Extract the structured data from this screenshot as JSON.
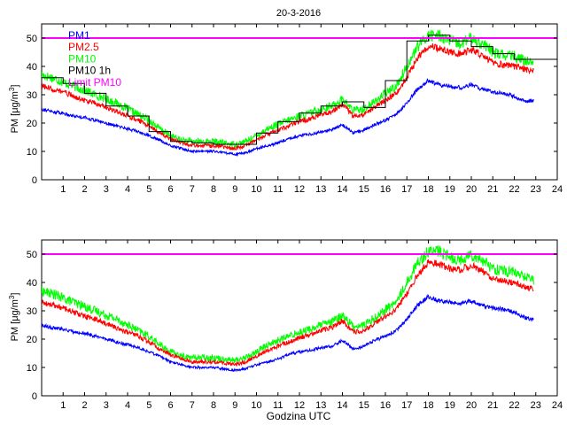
{
  "title": "20-3-2016",
  "xlabel": "Godzina UTC",
  "ylabel_main": "PM [μg/m",
  "ylabel_sup": "3",
  "ylabel_close": "]",
  "legend": [
    {
      "label": "PM1",
      "color": "#0000ff"
    },
    {
      "label": "PM2.5",
      "color": "#ff0000"
    },
    {
      "label": "PM10",
      "color": "#00ff00"
    },
    {
      "label": "PM10 1h",
      "color": "#000000"
    },
    {
      "label": "Limit PM10",
      "color": "#ff00ff"
    }
  ],
  "chart_data": [
    {
      "type": "line",
      "title": "20-3-2016",
      "ylim": [
        0,
        55
      ],
      "xlim": [
        0,
        24
      ],
      "xticks": [
        1,
        2,
        3,
        4,
        5,
        6,
        7,
        8,
        9,
        10,
        11,
        12,
        13,
        14,
        15,
        16,
        17,
        18,
        19,
        20,
        21,
        22,
        23,
        24
      ],
      "yticks": [
        0,
        10,
        20,
        30,
        40,
        50
      ],
      "grid": false,
      "legend_position": "top-left",
      "limit_line": {
        "name": "Limit PM10",
        "value": 50,
        "color": "#ff00ff"
      },
      "series": [
        {
          "name": "PM1",
          "color": "#0000ff",
          "x": [
            0,
            0.5,
            1,
            1.5,
            2,
            2.5,
            3,
            3.5,
            4,
            4.5,
            5,
            5.5,
            6,
            6.5,
            7,
            7.5,
            8,
            8.5,
            9,
            9.5,
            10,
            10.5,
            11,
            11.5,
            12,
            12.5,
            13,
            13.5,
            14,
            14.5,
            15,
            15.5,
            16,
            16.5,
            17,
            17.5,
            18,
            18.5,
            19,
            19.5,
            20,
            20.5,
            21,
            21.5,
            22,
            22.5,
            22.9
          ],
          "y": [
            25,
            24,
            23.5,
            22.5,
            22,
            21,
            20,
            19,
            18,
            17,
            15.5,
            14,
            12,
            11,
            10,
            10,
            10,
            9.5,
            9,
            9.5,
            11,
            12,
            13,
            14.5,
            15.5,
            16,
            17,
            17.5,
            19.5,
            16.5,
            17.5,
            19.5,
            21,
            23,
            27,
            32,
            35,
            33.5,
            33,
            32.5,
            33.5,
            32,
            31,
            30.5,
            29.5,
            27.5,
            28
          ]
        },
        {
          "name": "PM2.5",
          "color": "#ff0000",
          "x": [
            0,
            0.5,
            1,
            1.5,
            2,
            2.5,
            3,
            3.5,
            4,
            4.5,
            5,
            5.5,
            6,
            6.5,
            7,
            7.5,
            8,
            8.5,
            9,
            9.5,
            10,
            10.5,
            11,
            11.5,
            12,
            12.5,
            13,
            13.5,
            14,
            14.5,
            15,
            15.5,
            16,
            16.5,
            17,
            17.5,
            18,
            18.5,
            19,
            19.5,
            20,
            20.5,
            21,
            21.5,
            22,
            22.5,
            22.9
          ],
          "y": [
            33,
            32,
            31,
            29.5,
            28,
            27,
            25.5,
            24,
            22.5,
            21,
            19,
            16.5,
            14.5,
            13,
            12,
            12,
            12,
            11.5,
            11,
            12,
            14,
            16,
            17.5,
            19,
            20.5,
            21.5,
            23,
            24,
            26.5,
            22.5,
            23,
            25.5,
            28,
            30.5,
            36,
            43,
            47,
            46.5,
            45,
            44.5,
            46,
            44,
            41.5,
            40.5,
            40,
            39,
            38.5
          ]
        },
        {
          "name": "PM10",
          "color": "#00ff00",
          "x": [
            0,
            0.5,
            1,
            1.5,
            2,
            2.5,
            3,
            3.5,
            4,
            4.5,
            5,
            5.5,
            6,
            6.5,
            7,
            7.5,
            8,
            8.5,
            9,
            9.5,
            10,
            10.5,
            11,
            11.5,
            12,
            12.5,
            13,
            13.5,
            14,
            14.5,
            15,
            15.5,
            16,
            16.5,
            17,
            17.5,
            18,
            18.5,
            19,
            19.5,
            20,
            20.5,
            21,
            21.5,
            22,
            22.5,
            22.9
          ],
          "y": [
            37,
            36,
            34.5,
            33,
            31.5,
            30,
            28.5,
            27,
            25,
            23,
            21,
            18,
            15.5,
            14,
            13.5,
            13.5,
            13.5,
            13,
            12.5,
            13.5,
            15.5,
            18,
            19.5,
            21,
            22.5,
            23.5,
            25,
            26,
            28.5,
            24.5,
            25,
            27.5,
            30.5,
            33,
            40,
            47,
            51,
            51,
            49,
            48,
            50,
            48,
            45,
            44,
            43.5,
            42,
            42
          ]
        },
        {
          "name": "PM10 1h",
          "color": "#000000",
          "step": true,
          "x": [
            0,
            1,
            2,
            3,
            4,
            5,
            6,
            7,
            8,
            9,
            10,
            11,
            12,
            13,
            14,
            15,
            16,
            17,
            18,
            19,
            20,
            21,
            22,
            23
          ],
          "y": [
            36,
            34,
            30.5,
            26,
            22.5,
            17,
            13.5,
            13,
            12.5,
            12.5,
            16.5,
            20.5,
            23.5,
            26,
            27.5,
            25.5,
            35,
            49,
            51,
            49,
            47,
            44.5,
            42.5,
            42.5
          ]
        }
      ]
    },
    {
      "type": "line",
      "xlabel": "Godzina UTC",
      "ylim": [
        0,
        55
      ],
      "xlim": [
        0,
        24
      ],
      "xticks": [
        1,
        2,
        3,
        4,
        5,
        6,
        7,
        8,
        9,
        10,
        11,
        12,
        13,
        14,
        15,
        16,
        17,
        18,
        19,
        20,
        21,
        22,
        23,
        24
      ],
      "yticks": [
        0,
        10,
        20,
        30,
        40,
        50
      ],
      "grid": false,
      "limit_line": {
        "name": "Limit PM10",
        "value": 50,
        "color": "#ff00ff"
      },
      "series": [
        {
          "name": "PM1",
          "color": "#0000ff",
          "x": [
            0,
            0.5,
            1,
            1.5,
            2,
            2.5,
            3,
            3.5,
            4,
            4.5,
            5,
            5.5,
            6,
            6.5,
            7,
            7.5,
            8,
            8.5,
            9,
            9.5,
            10,
            10.5,
            11,
            11.5,
            12,
            12.5,
            13,
            13.5,
            14,
            14.5,
            15,
            15.5,
            16,
            16.5,
            17,
            17.5,
            18,
            18.5,
            19,
            19.5,
            20,
            20.5,
            21,
            21.5,
            22,
            22.5,
            22.9
          ],
          "y": [
            25,
            24,
            23.5,
            22.5,
            22,
            21,
            20,
            19,
            18,
            17,
            15.5,
            14,
            12,
            11,
            10,
            10,
            10,
            9.5,
            9,
            9.5,
            11,
            12,
            13,
            14.5,
            15.5,
            16,
            17,
            17.5,
            19.5,
            16.5,
            17.5,
            19.5,
            21,
            23,
            27,
            32,
            35,
            33.5,
            33,
            32.5,
            33.5,
            32,
            31,
            30.5,
            29.5,
            27.5,
            27
          ]
        },
        {
          "name": "PM2.5",
          "color": "#ff0000",
          "x": [
            0,
            0.5,
            1,
            1.5,
            2,
            2.5,
            3,
            3.5,
            4,
            4.5,
            5,
            5.5,
            6,
            6.5,
            7,
            7.5,
            8,
            8.5,
            9,
            9.5,
            10,
            10.5,
            11,
            11.5,
            12,
            12.5,
            13,
            13.5,
            14,
            14.5,
            15,
            15.5,
            16,
            16.5,
            17,
            17.5,
            18,
            18.5,
            19,
            19.5,
            20,
            20.5,
            21,
            21.5,
            22,
            22.5,
            22.9
          ],
          "y": [
            33,
            32,
            31,
            29.5,
            28,
            27,
            25.5,
            24,
            22.5,
            21,
            19,
            16.5,
            14.5,
            13,
            12,
            12,
            12,
            11.5,
            11,
            12,
            14,
            16,
            17.5,
            19,
            20.5,
            21.5,
            23,
            24,
            26.5,
            22.5,
            23,
            25.5,
            28,
            30.5,
            36,
            43,
            47,
            46.5,
            45,
            44.5,
            46,
            44,
            41.5,
            40.5,
            40,
            38.5,
            37.5
          ]
        },
        {
          "name": "PM10",
          "color": "#00ff00",
          "x": [
            0,
            0.5,
            1,
            1.5,
            2,
            2.5,
            3,
            3.5,
            4,
            4.5,
            5,
            5.5,
            6,
            6.5,
            7,
            7.5,
            8,
            8.5,
            9,
            9.5,
            10,
            10.5,
            11,
            11.5,
            12,
            12.5,
            13,
            13.5,
            14,
            14.5,
            15,
            15.5,
            16,
            16.5,
            17,
            17.5,
            18,
            18.5,
            19,
            19.5,
            20,
            20.5,
            21,
            21.5,
            22,
            22.5,
            22.9
          ],
          "y": [
            37,
            36,
            34.5,
            33,
            31.5,
            30,
            28.5,
            27,
            25,
            23,
            21,
            18,
            15.5,
            14,
            13.5,
            13.5,
            13.5,
            13,
            12.5,
            13.5,
            15.5,
            18,
            19.5,
            21,
            22.5,
            23.5,
            25,
            26,
            28.5,
            24.5,
            25,
            27.5,
            30.5,
            33,
            40,
            47,
            51,
            51,
            49,
            48,
            50,
            48,
            45,
            44,
            43.5,
            42,
            41
          ]
        }
      ]
    }
  ]
}
